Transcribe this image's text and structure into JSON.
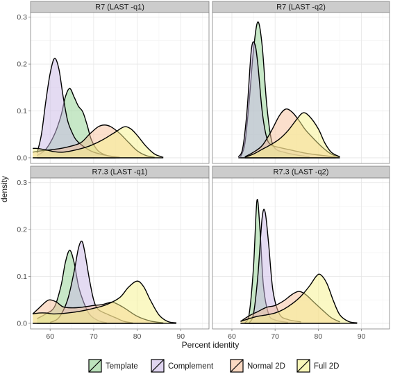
{
  "chart_data": {
    "type": "area",
    "ylabel": "density",
    "xlabel": "Percent identity",
    "xlim": [
      55.5,
      96.5
    ],
    "ylim": [
      -0.012,
      0.31
    ],
    "x_ticks": [
      60,
      70,
      80,
      90
    ],
    "y_ticks": [
      0.0,
      0.1,
      0.2,
      0.3
    ],
    "y_tick_labels": [
      "0.0",
      "0.1",
      "0.2",
      "0.3"
    ],
    "grid": true,
    "legend_position": "bottom",
    "colors": {
      "Template": "#8fd18f",
      "Complement": "#c9b8e6",
      "Normal 2D": "#f7c09a",
      "Full 2D": "#f5f28a"
    },
    "series_order": [
      "Template",
      "Complement",
      "Normal 2D",
      "Full 2D"
    ],
    "panels": [
      {
        "title": "R7 (LAST -q1)",
        "series": [
          {
            "name": "Template",
            "points": [
              [
                57,
                0.005
              ],
              [
                59,
                0.018
              ],
              [
                61,
                0.05
              ],
              [
                62.5,
                0.09
              ],
              [
                63.5,
                0.13
              ],
              [
                64.5,
                0.148
              ],
              [
                65.5,
                0.13
              ],
              [
                66.5,
                0.11
              ],
              [
                67.5,
                0.098
              ],
              [
                68.5,
                0.07
              ],
              [
                69.5,
                0.038
              ],
              [
                71,
                0.015
              ],
              [
                73,
                0.005
              ],
              [
                75,
                0.001
              ]
            ]
          },
          {
            "name": "Complement",
            "points": [
              [
                57,
                0.01
              ],
              [
                58,
                0.05
              ],
              [
                59,
                0.12
              ],
              [
                60,
                0.18
              ],
              [
                61,
                0.212
              ],
              [
                62,
                0.19
              ],
              [
                63,
                0.13
              ],
              [
                64,
                0.08
              ],
              [
                65,
                0.055
              ],
              [
                66,
                0.038
              ],
              [
                68,
                0.022
              ],
              [
                70,
                0.012
              ],
              [
                73,
                0.005
              ],
              [
                76,
                0.001
              ]
            ]
          },
          {
            "name": "Normal 2D",
            "points": [
              [
                56,
                0.012
              ],
              [
                58,
                0.015
              ],
              [
                61,
                0.018
              ],
              [
                64,
                0.023
              ],
              [
                67,
                0.032
              ],
              [
                69,
                0.05
              ],
              [
                71,
                0.066
              ],
              [
                72.5,
                0.07
              ],
              [
                74,
                0.066
              ],
              [
                76,
                0.052
              ],
              [
                78,
                0.033
              ],
              [
                80,
                0.015
              ],
              [
                82,
                0.005
              ],
              [
                84,
                0.001
              ]
            ]
          },
          {
            "name": "Full 2D",
            "points": [
              [
                56,
                0.02
              ],
              [
                57,
                0.02
              ],
              [
                59,
                0.017
              ],
              [
                61,
                0.013
              ],
              [
                63,
                0.012
              ],
              [
                66,
                0.017
              ],
              [
                69,
                0.025
              ],
              [
                72,
                0.038
              ],
              [
                75,
                0.055
              ],
              [
                77,
                0.066
              ],
              [
                78.5,
                0.062
              ],
              [
                80,
                0.048
              ],
              [
                82,
                0.025
              ],
              [
                84,
                0.008
              ],
              [
                86,
                0.001
              ]
            ]
          }
        ]
      },
      {
        "title": "R7 (LAST -q2)",
        "series": [
          {
            "name": "Template",
            "points": [
              [
                62,
                0.002
              ],
              [
                63,
                0.03
              ],
              [
                64,
                0.12
              ],
              [
                65,
                0.23
              ],
              [
                66,
                0.29
              ],
              [
                67,
                0.24
              ],
              [
                68,
                0.12
              ],
              [
                69,
                0.045
              ],
              [
                70,
                0.02
              ],
              [
                72,
                0.012
              ],
              [
                75,
                0.006
              ],
              [
                78,
                0.002
              ]
            ]
          },
          {
            "name": "Complement",
            "points": [
              [
                61.5,
                0.002
              ],
              [
                62.5,
                0.02
              ],
              [
                63.5,
                0.1
              ],
              [
                64.5,
                0.23
              ],
              [
                65.3,
                0.243
              ],
              [
                66,
                0.2
              ],
              [
                67,
                0.1
              ],
              [
                68,
                0.045
              ],
              [
                69,
                0.028
              ],
              [
                71,
                0.022
              ],
              [
                74,
                0.016
              ],
              [
                77,
                0.01
              ],
              [
                80,
                0.006
              ],
              [
                84,
                0.002
              ]
            ]
          },
          {
            "name": "Normal 2D",
            "points": [
              [
                63,
                0.002
              ],
              [
                65,
                0.012
              ],
              [
                67,
                0.026
              ],
              [
                69,
                0.055
              ],
              [
                71,
                0.09
              ],
              [
                72.5,
                0.104
              ],
              [
                74,
                0.097
              ],
              [
                75.5,
                0.08
              ],
              [
                77,
                0.06
              ],
              [
                79,
                0.04
              ],
              [
                81,
                0.022
              ],
              [
                83,
                0.008
              ],
              [
                85,
                0.002
              ]
            ]
          },
          {
            "name": "Full 2D",
            "points": [
              [
                63,
                0.001
              ],
              [
                65,
                0.008
              ],
              [
                67,
                0.018
              ],
              [
                69,
                0.028
              ],
              [
                71,
                0.04
              ],
              [
                73,
                0.058
              ],
              [
                75,
                0.082
              ],
              [
                76.5,
                0.096
              ],
              [
                78,
                0.088
              ],
              [
                80,
                0.062
              ],
              [
                81.5,
                0.032
              ],
              [
                83,
                0.012
              ],
              [
                85,
                0.002
              ]
            ]
          }
        ]
      },
      {
        "title": "R7.3 (LAST -q1)",
        "series": [
          {
            "name": "Template",
            "points": [
              [
                57,
                0.01
              ],
              [
                59,
                0.02
              ],
              [
                61,
                0.035
              ],
              [
                62.5,
                0.08
              ],
              [
                63.5,
                0.13
              ],
              [
                64.5,
                0.156
              ],
              [
                65.5,
                0.13
              ],
              [
                66.5,
                0.08
              ],
              [
                67.5,
                0.05
              ],
              [
                69,
                0.02
              ],
              [
                71,
                0.006
              ],
              [
                73,
                0.001
              ]
            ]
          },
          {
            "name": "Complement",
            "points": [
              [
                60,
                0.002
              ],
              [
                62,
                0.012
              ],
              [
                64,
                0.05
              ],
              [
                65.5,
                0.11
              ],
              [
                66.5,
                0.16
              ],
              [
                67.3,
                0.175
              ],
              [
                68,
                0.15
              ],
              [
                69,
                0.095
              ],
              [
                70,
                0.05
              ],
              [
                71,
                0.03
              ],
              [
                73,
                0.02
              ],
              [
                75,
                0.012
              ],
              [
                77,
                0.004
              ],
              [
                79,
                0.001
              ]
            ]
          },
          {
            "name": "Normal 2D",
            "points": [
              [
                56,
                0.02
              ],
              [
                57.5,
                0.033
              ],
              [
                59,
                0.046
              ],
              [
                60,
                0.05
              ],
              [
                61.5,
                0.045
              ],
              [
                63,
                0.035
              ],
              [
                65,
                0.033
              ],
              [
                67,
                0.034
              ],
              [
                70,
                0.038
              ],
              [
                72,
                0.04
              ],
              [
                74,
                0.045
              ],
              [
                75,
                0.043
              ],
              [
                77,
                0.033
              ],
              [
                80,
                0.015
              ],
              [
                83,
                0.005
              ],
              [
                86,
                0.001
              ]
            ]
          },
          {
            "name": "Full 2D",
            "points": [
              [
                56,
                0.02
              ],
              [
                57.5,
                0.022
              ],
              [
                59,
                0.022
              ],
              [
                61,
                0.02
              ],
              [
                64,
                0.022
              ],
              [
                67,
                0.026
              ],
              [
                70,
                0.032
              ],
              [
                73,
                0.04
              ],
              [
                76,
                0.055
              ],
              [
                78,
                0.077
              ],
              [
                80,
                0.09
              ],
              [
                81.5,
                0.078
              ],
              [
                83,
                0.05
              ],
              [
                85,
                0.018
              ],
              [
                87,
                0.004
              ],
              [
                89,
                0.001
              ]
            ]
          }
        ]
      },
      {
        "title": "R7.3 (LAST -q2)",
        "series": [
          {
            "name": "Template",
            "points": [
              [
                63,
                0.001
              ],
              [
                64,
                0.02
              ],
              [
                65,
                0.12
              ],
              [
                65.8,
                0.262
              ],
              [
                66.5,
                0.2
              ],
              [
                67.3,
                0.08
              ],
              [
                68.5,
                0.02
              ],
              [
                70,
                0.007
              ],
              [
                73,
                0.002
              ]
            ]
          },
          {
            "name": "Complement",
            "points": [
              [
                64,
                0.001
              ],
              [
                65,
                0.02
              ],
              [
                66,
                0.1
              ],
              [
                67,
                0.225
              ],
              [
                67.7,
                0.237
              ],
              [
                68.5,
                0.17
              ],
              [
                69.5,
                0.07
              ],
              [
                71,
                0.02
              ],
              [
                73,
                0.008
              ],
              [
                76,
                0.003
              ]
            ]
          },
          {
            "name": "Normal 2D",
            "points": [
              [
                62,
                0.004
              ],
              [
                64,
                0.016
              ],
              [
                66,
                0.025
              ],
              [
                68,
                0.034
              ],
              [
                70,
                0.038
              ],
              [
                72,
                0.048
              ],
              [
                74,
                0.062
              ],
              [
                75.5,
                0.068
              ],
              [
                77,
                0.062
              ],
              [
                79,
                0.045
              ],
              [
                81,
                0.028
              ],
              [
                83,
                0.012
              ],
              [
                85,
                0.003
              ]
            ]
          },
          {
            "name": "Full 2D",
            "points": [
              [
                62,
                0.004
              ],
              [
                64,
                0.01
              ],
              [
                66,
                0.015
              ],
              [
                68,
                0.018
              ],
              [
                70,
                0.022
              ],
              [
                72,
                0.03
              ],
              [
                74,
                0.042
              ],
              [
                76,
                0.058
              ],
              [
                78,
                0.08
              ],
              [
                79.5,
                0.1
              ],
              [
                80.5,
                0.104
              ],
              [
                82,
                0.085
              ],
              [
                83.5,
                0.048
              ],
              [
                85,
                0.018
              ],
              [
                87,
                0.004
              ],
              [
                89,
                0.001
              ]
            ]
          }
        ]
      }
    ]
  }
}
